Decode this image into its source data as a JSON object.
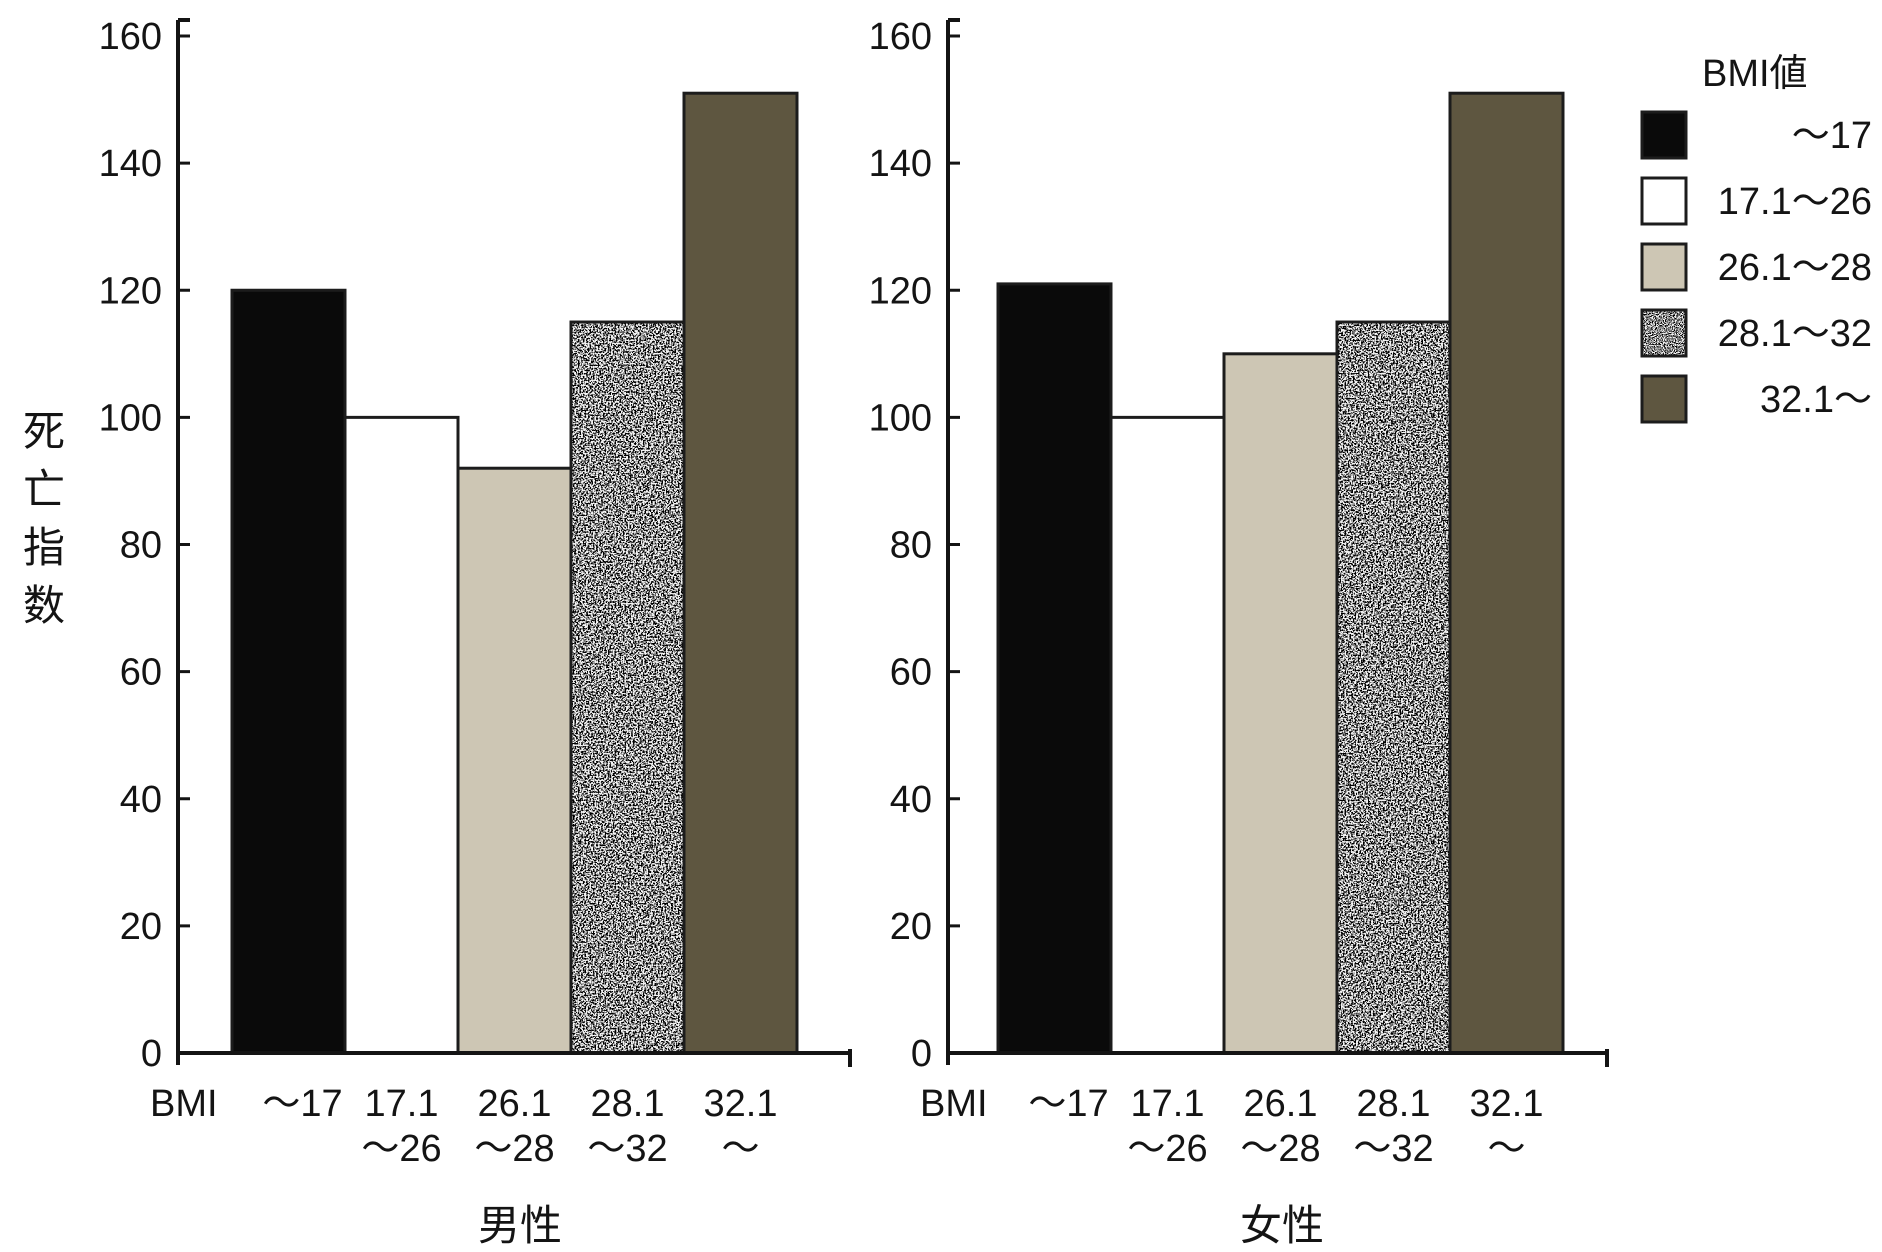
{
  "chart_data": {
    "type": "bar",
    "ylabel": "死亡指数",
    "ylim": [
      0,
      160
    ],
    "yticks": [
      0,
      20,
      40,
      60,
      80,
      100,
      120,
      140,
      160
    ],
    "grid": false,
    "legend": {
      "title": "BMI値",
      "position": "top-right",
      "entries": [
        "～17",
        "17.1～26",
        "26.1～28",
        "28.1～32",
        "32.1～"
      ]
    },
    "x_prefix": "BMI",
    "categories": [
      [
        "～17"
      ],
      [
        "17.1",
        "～26"
      ],
      [
        "26.1",
        "～28"
      ],
      [
        "28.1",
        "～32"
      ],
      [
        "32.1",
        "～"
      ]
    ],
    "series_colors": [
      "#0a0a0a",
      "#ffffff",
      "#cdc6b4",
      "#5a5a5a",
      "#5e5640"
    ],
    "panels": [
      {
        "label": "男性",
        "values": [
          120,
          100,
          92,
          115,
          151
        ]
      },
      {
        "label": "女性",
        "values": [
          121,
          100,
          110,
          115,
          151
        ]
      }
    ]
  }
}
